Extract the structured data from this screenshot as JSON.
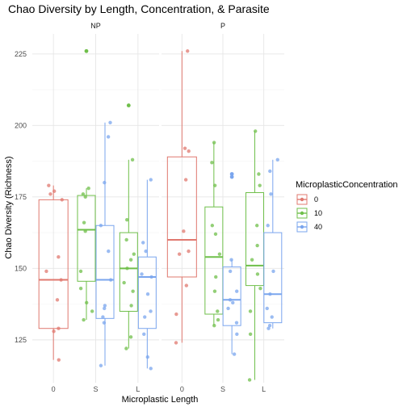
{
  "chart_data": {
    "type": "boxplot",
    "title": "Chao Diversity by Length, Concentration, & Parasite",
    "xlabel": "Microplastic Length",
    "ylabel": "Chao Diversity (Richness)",
    "ylim": [
      110,
      232
    ],
    "yticks": [
      125,
      150,
      175,
      200,
      225
    ],
    "categories": [
      "0",
      "S",
      "L"
    ],
    "legend": {
      "title": "MicroplasticConcentration",
      "position": "right",
      "items": [
        {
          "label": "0",
          "color": "#E0786F"
        },
        {
          "label": "10",
          "color": "#6FBF4A"
        },
        {
          "label": "40",
          "color": "#7AA5EE"
        }
      ]
    },
    "panels": [
      {
        "label": "NP",
        "boxes": [
          {
            "category": "0",
            "series": "0",
            "q1": 129,
            "median": 146,
            "q3": 174,
            "whisker_low": 118,
            "whisker_high": 179,
            "points": [
              179,
              177,
              176,
              174,
              154,
              149,
              146,
              139,
              129,
              128,
              118
            ]
          },
          {
            "category": "S",
            "series": "10",
            "q1": 145.5,
            "median": 163.5,
            "q3": 175.5,
            "whisker_low": 132,
            "whisker_high": 178,
            "points": [
              178,
              176,
              175,
              166,
              163,
              149,
              143,
              138,
              135,
              132
            ]
          },
          {
            "category": "S",
            "series": "40",
            "q1": 132.5,
            "median": 146,
            "q3": 165,
            "whisker_low": 116,
            "whisker_high": 201,
            "points": [
              201,
              196,
              180,
              165,
              156,
              146,
              137,
              136,
              133,
              131,
              116
            ]
          },
          {
            "category": "L",
            "series": "10",
            "q1": 135,
            "median": 150,
            "q3": 162.5,
            "whisker_low": 122,
            "whisker_high": 188,
            "points": [
              188,
              167,
              160,
              155,
              153,
              150,
              145,
              142,
              137,
              126,
              122
            ]
          },
          {
            "category": "L",
            "series": "40",
            "q1": 129,
            "median": 147,
            "q3": 154,
            "whisker_low": 115,
            "whisker_high": 181,
            "points": [
              181,
              159,
              156,
              148,
              147,
              141,
              135,
              133,
              127,
              119,
              115
            ]
          }
        ],
        "outliers": [
          {
            "category": "S",
            "series": "10",
            "value": 226
          },
          {
            "category": "L",
            "series": "10",
            "value": 207
          }
        ]
      },
      {
        "label": "P",
        "boxes": [
          {
            "category": "0",
            "series": "0",
            "q1": 147,
            "median": 160,
            "q3": 189,
            "whisker_low": 124,
            "whisker_high": 226,
            "points": [
              226,
              192,
              191,
              181,
              163,
              156,
              155,
              144,
              134,
              124
            ]
          },
          {
            "category": "S",
            "series": "10",
            "q1": 134,
            "median": 154,
            "q3": 171.5,
            "whisker_low": 130,
            "whisker_high": 194,
            "points": [
              194,
              187,
              179,
              165,
              162,
              155,
              147,
              142,
              135,
              132,
              130
            ]
          },
          {
            "category": "S",
            "series": "40",
            "q1": 130,
            "median": 139,
            "q3": 150.5,
            "whisker_low": 120,
            "whisker_high": 153,
            "points": [
              153,
              149,
              142,
              139,
              138,
              136,
              131,
              127,
              120
            ]
          },
          {
            "category": "L",
            "series": "10",
            "q1": 144,
            "median": 151,
            "q3": 176.5,
            "whisker_low": 111,
            "whisker_high": 198,
            "points": [
              198,
              183,
              179,
              165,
              158,
              153,
              148,
              143,
              135,
              127,
              111
            ]
          },
          {
            "category": "L",
            "series": "40",
            "q1": 131,
            "median": 141,
            "q3": 162.5,
            "whisker_low": 129,
            "whisker_high": 188,
            "points": [
              188,
              184,
              176,
              165,
              149,
              141,
              136,
              133,
              130,
              129
            ]
          }
        ],
        "outliers": [
          {
            "category": "S",
            "series": "40",
            "value": 183
          },
          {
            "category": "S",
            "series": "40",
            "value": 182
          }
        ]
      }
    ]
  }
}
